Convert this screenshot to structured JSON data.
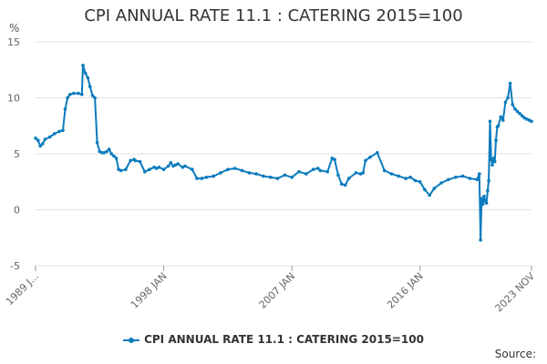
{
  "chart_data": {
    "type": "line",
    "title": "CPI ANNUAL RATE 11.1 : CATERING 2015=100",
    "ylabel": "%",
    "ylim": [
      -5,
      15
    ],
    "yticks": [
      -5,
      0,
      5,
      10,
      15
    ],
    "x_start": "1989 JAN",
    "x_end": "2023 NOV",
    "xtick_labels": [
      "1989 J...",
      "1998 JAN",
      "2007 JAN",
      "2016 JAN",
      "2023 NOV"
    ],
    "xtick_positions": [
      1989.0,
      1998.0,
      2007.0,
      2016.0,
      2023.83
    ],
    "grid": "horizontal",
    "legend_position": "bottom",
    "source_label": "Source:",
    "series": [
      {
        "name": "CPI ANNUAL RATE 11.1 : CATERING 2015=100",
        "color": "#0a7bbd",
        "x": [
          1989.0,
          1989.17,
          1989.33,
          1989.5,
          1989.67,
          1990.0,
          1990.33,
          1990.67,
          1990.92,
          1991.08,
          1991.25,
          1991.42,
          1991.67,
          1992.0,
          1992.25,
          1992.33,
          1992.5,
          1992.67,
          1992.83,
          1993.0,
          1993.17,
          1993.33,
          1993.5,
          1993.67,
          1993.83,
          1994.0,
          1994.17,
          1994.33,
          1994.5,
          1994.67,
          1994.83,
          1995.0,
          1995.33,
          1995.67,
          1995.92,
          1996.0,
          1996.33,
          1996.67,
          1997.0,
          1997.33,
          1997.5,
          1997.67,
          1998.0,
          1998.33,
          1998.5,
          1998.67,
          1998.83,
          1999.0,
          1999.33,
          1999.5,
          2000.0,
          2000.33,
          2000.67,
          2001.0,
          2001.5,
          2002.0,
          2002.5,
          2003.0,
          2003.5,
          2004.0,
          2004.5,
          2005.0,
          2005.5,
          2006.0,
          2006.5,
          2007.0,
          2007.5,
          2008.0,
          2008.5,
          2008.83,
          2009.0,
          2009.5,
          2009.83,
          2010.0,
          2010.25,
          2010.5,
          2010.75,
          2011.0,
          2011.5,
          2011.83,
          2012.0,
          2012.17,
          2012.5,
          2013.0,
          2013.5,
          2014.0,
          2014.5,
          2015.0,
          2015.33,
          2015.67,
          2016.0,
          2016.33,
          2016.67,
          2017.0,
          2017.5,
          2018.0,
          2018.5,
          2019.0,
          2019.5,
          2020.0,
          2020.17,
          2020.25,
          2020.33,
          2020.42,
          2020.5,
          2020.58,
          2020.67,
          2020.75,
          2020.83,
          2020.92,
          2021.0,
          2021.08,
          2021.17,
          2021.25,
          2021.33,
          2021.42,
          2021.5,
          2021.67,
          2021.83,
          2022.0,
          2022.17,
          2022.33,
          2022.5,
          2022.67,
          2022.83,
          2023.0,
          2023.17,
          2023.33,
          2023.5,
          2023.67,
          2023.83
        ],
        "y": [
          6.4,
          6.2,
          5.7,
          5.9,
          6.3,
          6.5,
          6.8,
          7.0,
          7.1,
          9.0,
          10.0,
          10.3,
          10.4,
          10.4,
          10.3,
          12.9,
          12.2,
          11.8,
          11.0,
          10.2,
          10.0,
          6.0,
          5.2,
          5.1,
          5.1,
          5.2,
          5.4,
          5.0,
          4.8,
          4.6,
          3.6,
          3.5,
          3.6,
          4.4,
          4.5,
          4.4,
          4.3,
          3.4,
          3.6,
          3.8,
          3.7,
          3.8,
          3.6,
          3.9,
          4.2,
          3.9,
          4.0,
          4.1,
          3.8,
          3.9,
          3.6,
          2.8,
          2.8,
          2.9,
          3.0,
          3.3,
          3.6,
          3.7,
          3.5,
          3.3,
          3.2,
          3.0,
          2.9,
          2.8,
          3.1,
          2.9,
          3.4,
          3.2,
          3.6,
          3.7,
          3.5,
          3.4,
          4.6,
          4.5,
          3.1,
          2.3,
          2.2,
          2.8,
          3.3,
          3.2,
          3.3,
          4.4,
          4.7,
          5.1,
          3.5,
          3.2,
          3.0,
          2.8,
          2.9,
          2.6,
          2.5,
          1.8,
          1.3,
          1.9,
          2.4,
          2.7,
          2.9,
          3.0,
          2.8,
          2.7,
          3.2,
          -2.7,
          1.0,
          0.5,
          1.2,
          0.8,
          0.6,
          1.7,
          2.6,
          7.9,
          4.5,
          4.0,
          4.6,
          4.3,
          6.2,
          7.4,
          7.5,
          8.3,
          8.0,
          9.6,
          10.0,
          11.3,
          9.4,
          9.0,
          8.8,
          8.6,
          8.4,
          8.2,
          8.1,
          8.0,
          7.9
        ]
      }
    ]
  }
}
